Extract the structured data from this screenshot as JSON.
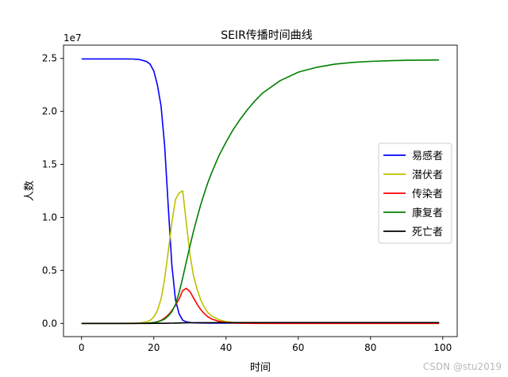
{
  "chart_data": {
    "type": "line",
    "title": "SEIR传播时间曲线",
    "xlabel": "时间",
    "ylabel": "人数",
    "y_offset_label": "1e7",
    "xlim": [
      -5,
      104
    ],
    "ylim": [
      -1250000,
      26250000
    ],
    "x_ticks": [
      0,
      20,
      40,
      60,
      80,
      100
    ],
    "x_tick_labels": [
      "0",
      "20",
      "40",
      "60",
      "80",
      "100"
    ],
    "y_ticks": [
      0,
      5000000,
      10000000,
      15000000,
      20000000,
      25000000
    ],
    "y_tick_labels": [
      "0.0",
      "0.5",
      "1.0",
      "1.5",
      "2.0",
      "2.5"
    ],
    "grid": false,
    "legend_position": "center-right",
    "x": [
      0,
      2,
      4,
      6,
      8,
      10,
      12,
      14,
      16,
      18,
      19,
      20,
      21,
      22,
      23,
      24,
      25,
      26,
      27,
      28,
      29,
      30,
      31,
      32,
      33,
      34,
      35,
      36,
      38,
      40,
      42,
      44,
      46,
      48,
      50,
      55,
      60,
      65,
      70,
      75,
      80,
      85,
      90,
      95,
      99
    ],
    "series": [
      {
        "name": "易感者",
        "color": "#0000ff",
        "values": [
          24950000,
          24950000,
          24950000,
          24950000,
          24950000,
          24950000,
          24950000,
          24940000,
          24900000,
          24700000,
          24450000,
          23800000,
          22500000,
          20500000,
          16800000,
          11000000,
          5500000,
          2200000,
          900000,
          300000,
          150000,
          80000,
          50000,
          40000,
          35000,
          32000,
          30000,
          30000,
          30000,
          30000,
          30000,
          30000,
          30000,
          30000,
          30000,
          30000,
          30000,
          30000,
          30000,
          30000,
          30000,
          30000,
          30000,
          30000,
          30000
        ]
      },
      {
        "name": "潜伏者",
        "color": "#bfbf00",
        "values": [
          0,
          0,
          0,
          0,
          0,
          0,
          2000,
          10000,
          30000,
          150000,
          280000,
          600000,
          1200000,
          2300000,
          4200000,
          6800000,
          9500000,
          11700000,
          12300000,
          12500000,
          9500000,
          6500000,
          4500000,
          3200000,
          2200000,
          1500000,
          1000000,
          700000,
          350000,
          170000,
          80000,
          40000,
          20000,
          10000,
          5000,
          0,
          0,
          0,
          0,
          0,
          0,
          0,
          0,
          0,
          0
        ]
      },
      {
        "name": "传染者",
        "color": "#ff0000",
        "values": [
          0,
          0,
          0,
          0,
          0,
          0,
          0,
          0,
          2000,
          15000,
          40000,
          80000,
          150000,
          280000,
          500000,
          800000,
          1200000,
          1700000,
          2300000,
          3100000,
          3300000,
          3000000,
          2400000,
          1800000,
          1300000,
          900000,
          620000,
          420000,
          190000,
          80000,
          35000,
          15000,
          6000,
          0,
          0,
          0,
          0,
          0,
          0,
          0,
          0,
          0,
          0,
          0,
          0
        ]
      },
      {
        "name": "康复者",
        "color": "#008000",
        "values": [
          0,
          0,
          0,
          0,
          0,
          0,
          0,
          0,
          5000,
          20000,
          40000,
          80000,
          150000,
          250000,
          400000,
          700000,
          1100000,
          1800000,
          2900000,
          4300000,
          5800000,
          7300000,
          8700000,
          10000000,
          11200000,
          12300000,
          13300000,
          14200000,
          15800000,
          17100000,
          18300000,
          19300000,
          20200000,
          21000000,
          21700000,
          22900000,
          23700000,
          24150000,
          24450000,
          24620000,
          24720000,
          24780000,
          24820000,
          24840000,
          24850000
        ]
      },
      {
        "name": "死亡者",
        "color": "#000000",
        "values": [
          0,
          0,
          0,
          0,
          0,
          0,
          0,
          0,
          0,
          1000,
          1500,
          2000,
          3000,
          5000,
          8000,
          12000,
          18000,
          25000,
          33000,
          42000,
          50000,
          56000,
          60000,
          63000,
          65000,
          66000,
          67000,
          68000,
          69000,
          70000,
          70000,
          70000,
          70000,
          70000,
          70000,
          70000,
          70000,
          70000,
          70000,
          70000,
          70000,
          70000,
          70000,
          70000,
          70000
        ]
      }
    ]
  },
  "watermark": "CSDN @stu2019"
}
